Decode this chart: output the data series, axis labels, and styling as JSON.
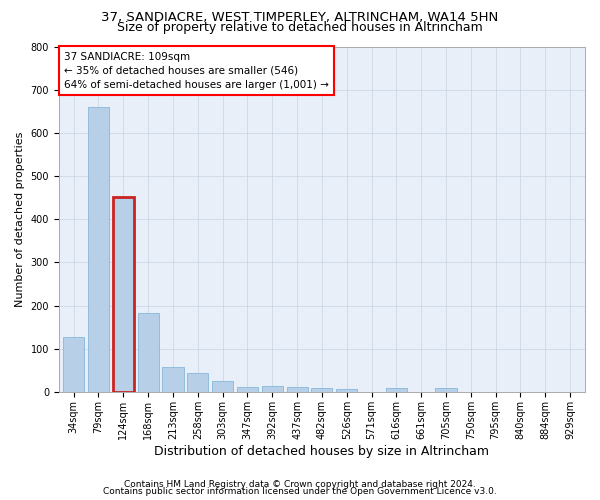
{
  "title": "37, SANDIACRE, WEST TIMPERLEY, ALTRINCHAM, WA14 5HN",
  "subtitle": "Size of property relative to detached houses in Altrincham",
  "xlabel": "Distribution of detached houses by size in Altrincham",
  "ylabel": "Number of detached properties",
  "categories": [
    "34sqm",
    "79sqm",
    "124sqm",
    "168sqm",
    "213sqm",
    "258sqm",
    "303sqm",
    "347sqm",
    "392sqm",
    "437sqm",
    "482sqm",
    "526sqm",
    "571sqm",
    "616sqm",
    "661sqm",
    "705sqm",
    "750sqm",
    "795sqm",
    "840sqm",
    "884sqm",
    "929sqm"
  ],
  "values": [
    128,
    660,
    452,
    183,
    58,
    43,
    25,
    12,
    13,
    12,
    10,
    7,
    0,
    8,
    0,
    8,
    0,
    0,
    0,
    0,
    0
  ],
  "bar_color": "#b8cfe8",
  "bar_edge_color": "#7aafd4",
  "highlight_bar_index": 2,
  "highlight_color": "#cc2222",
  "annotation_box_text": "37 SANDIACRE: 109sqm\n← 35% of detached houses are smaller (546)\n64% of semi-detached houses are larger (1,001) →",
  "ylim": [
    0,
    800
  ],
  "yticks": [
    0,
    100,
    200,
    300,
    400,
    500,
    600,
    700,
    800
  ],
  "bg_color": "#e8eff8",
  "footer_line1": "Contains HM Land Registry data © Crown copyright and database right 2024.",
  "footer_line2": "Contains public sector information licensed under the Open Government Licence v3.0.",
  "title_fontsize": 9.5,
  "subtitle_fontsize": 9,
  "xlabel_fontsize": 9,
  "ylabel_fontsize": 8,
  "tick_fontsize": 7,
  "annotation_fontsize": 7.5,
  "footer_fontsize": 6.5,
  "grid_color": "#c8d4e4"
}
